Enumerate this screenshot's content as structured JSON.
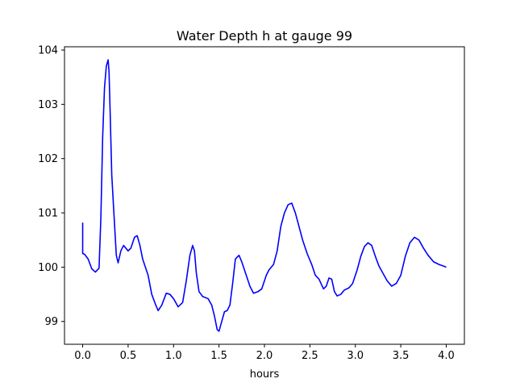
{
  "chart_data": {
    "type": "line",
    "title": "Water Depth h at gauge 99",
    "xlabel": "hours",
    "ylabel": "",
    "xlim": [
      -0.2,
      4.2
    ],
    "ylim": [
      98.58,
      104.06
    ],
    "grid": false,
    "legend": "none",
    "xticks": [
      0.0,
      0.5,
      1.0,
      1.5,
      2.0,
      2.5,
      3.0,
      3.5,
      4.0
    ],
    "xtick_labels": [
      "0.0",
      "0.5",
      "1.0",
      "1.5",
      "2.0",
      "2.5",
      "3.0",
      "3.5",
      "4.0"
    ],
    "yticks": [
      99,
      100,
      101,
      102,
      103,
      104
    ],
    "ytick_labels": [
      "99",
      "100",
      "101",
      "102",
      "103",
      "104"
    ],
    "series": [
      {
        "color": "#0000ff",
        "x": [
          0.0,
          0.0,
          0.02,
          0.06,
          0.1,
          0.14,
          0.18,
          0.2,
          0.22,
          0.24,
          0.26,
          0.28,
          0.29,
          0.3,
          0.32,
          0.34,
          0.37,
          0.39,
          0.42,
          0.45,
          0.5,
          0.53,
          0.57,
          0.6,
          0.63,
          0.66,
          0.69,
          0.72,
          0.76,
          0.8,
          0.83,
          0.87,
          0.92,
          0.96,
          1.0,
          1.05,
          1.1,
          1.14,
          1.18,
          1.21,
          1.23,
          1.25,
          1.28,
          1.32,
          1.38,
          1.42,
          1.45,
          1.48,
          1.5,
          1.53,
          1.56,
          1.59,
          1.62,
          1.65,
          1.68,
          1.72,
          1.75,
          1.8,
          1.84,
          1.88,
          1.93,
          1.97,
          2.02,
          2.05,
          2.1,
          2.14,
          2.18,
          2.22,
          2.26,
          2.3,
          2.34,
          2.38,
          2.42,
          2.47,
          2.52,
          2.56,
          2.6,
          2.65,
          2.68,
          2.71,
          2.74,
          2.77,
          2.8,
          2.84,
          2.88,
          2.93,
          2.97,
          3.02,
          3.06,
          3.1,
          3.14,
          3.18,
          3.22,
          3.26,
          3.3,
          3.35,
          3.4,
          3.45,
          3.5,
          3.55,
          3.6,
          3.65,
          3.7,
          3.75,
          3.8,
          3.86,
          3.92,
          3.97,
          4.0
        ],
        "y": [
          100.82,
          100.25,
          100.24,
          100.15,
          99.97,
          99.91,
          99.98,
          100.9,
          102.4,
          103.3,
          103.7,
          103.82,
          103.6,
          103.0,
          101.7,
          101.1,
          100.22,
          100.08,
          100.3,
          100.4,
          100.3,
          100.35,
          100.55,
          100.58,
          100.4,
          100.15,
          100.0,
          99.85,
          99.5,
          99.32,
          99.2,
          99.3,
          99.52,
          99.5,
          99.42,
          99.27,
          99.35,
          99.75,
          100.22,
          100.4,
          100.3,
          99.9,
          99.55,
          99.46,
          99.42,
          99.3,
          99.1,
          98.85,
          98.82,
          99.0,
          99.18,
          99.2,
          99.3,
          99.7,
          100.15,
          100.22,
          100.1,
          99.85,
          99.65,
          99.52,
          99.55,
          99.6,
          99.85,
          99.95,
          100.05,
          100.3,
          100.75,
          101.0,
          101.15,
          101.18,
          101.0,
          100.75,
          100.5,
          100.25,
          100.05,
          99.85,
          99.78,
          99.6,
          99.65,
          99.8,
          99.78,
          99.55,
          99.47,
          99.5,
          99.58,
          99.62,
          99.7,
          99.95,
          100.2,
          100.38,
          100.45,
          100.4,
          100.2,
          100.02,
          99.9,
          99.75,
          99.65,
          99.7,
          99.85,
          100.2,
          100.45,
          100.55,
          100.5,
          100.35,
          100.22,
          100.1,
          100.05,
          100.02,
          100.0
        ]
      }
    ]
  }
}
